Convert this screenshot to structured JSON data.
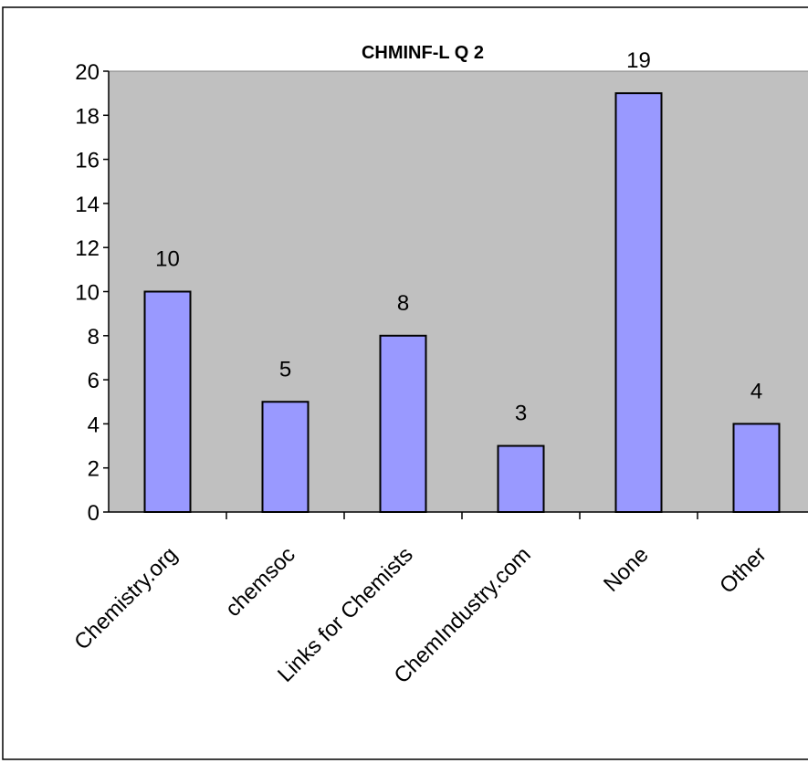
{
  "chart_data": {
    "type": "bar",
    "title": "CHMINF-L Q 2",
    "categories": [
      "Chemistry.org",
      "chemsoc",
      "Links for Chemists",
      "ChemIndustry.com",
      "None",
      "Other"
    ],
    "values": [
      10,
      5,
      8,
      3,
      19,
      4
    ],
    "data_labels": [
      "10",
      "5",
      "8",
      "3",
      "19",
      "4"
    ],
    "y_ticks": [
      0,
      2,
      4,
      6,
      8,
      10,
      12,
      14,
      16,
      18,
      20
    ],
    "ylim": [
      0,
      20
    ],
    "xlabel": "",
    "ylabel": "",
    "grid": false,
    "legend": "none",
    "colors": {
      "plot_background": "#c0c0c0",
      "bar_fill": "#9999ff",
      "bar_stroke": "#000000",
      "frame_border": "#000000"
    }
  }
}
